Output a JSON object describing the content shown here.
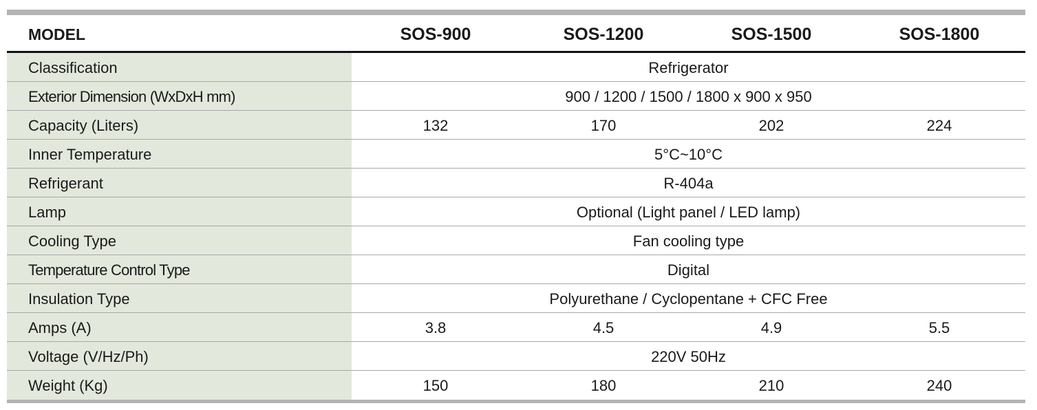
{
  "table": {
    "header": {
      "label": "MODEL",
      "models": [
        "SOS-900",
        "SOS-1200",
        "SOS-1500",
        "SOS-1800"
      ]
    },
    "rows": [
      {
        "label": "Classification",
        "span": "Refrigerator"
      },
      {
        "label": "Exterior Dimension (WxDxH mm)",
        "span": "900 / 1200 / 1500 / 1800 x 900 x 950"
      },
      {
        "label": "Capacity (Liters)",
        "values": [
          "132",
          "170",
          "202",
          "224"
        ]
      },
      {
        "label": "Inner Temperature",
        "span": "5°C~10°C"
      },
      {
        "label": "Refrigerant",
        "span": "R-404a"
      },
      {
        "label": "Lamp",
        "span": "Optional (Light panel / LED lamp)"
      },
      {
        "label": "Cooling Type",
        "span": "Fan cooling type"
      },
      {
        "label": "Temperature Control Type",
        "span": "Digital"
      },
      {
        "label": "Insulation Type",
        "span": "Polyurethane / Cyclopentane + CFC Free"
      },
      {
        "label": "Amps (A)",
        "values": [
          "3.8",
          "4.5",
          "4.9",
          "5.5"
        ]
      },
      {
        "label": "Voltage (V/Hz/Ph)",
        "span": "220V 50Hz"
      },
      {
        "label": "Weight (Kg)",
        "values": [
          "150",
          "180",
          "210",
          "240"
        ]
      }
    ]
  }
}
